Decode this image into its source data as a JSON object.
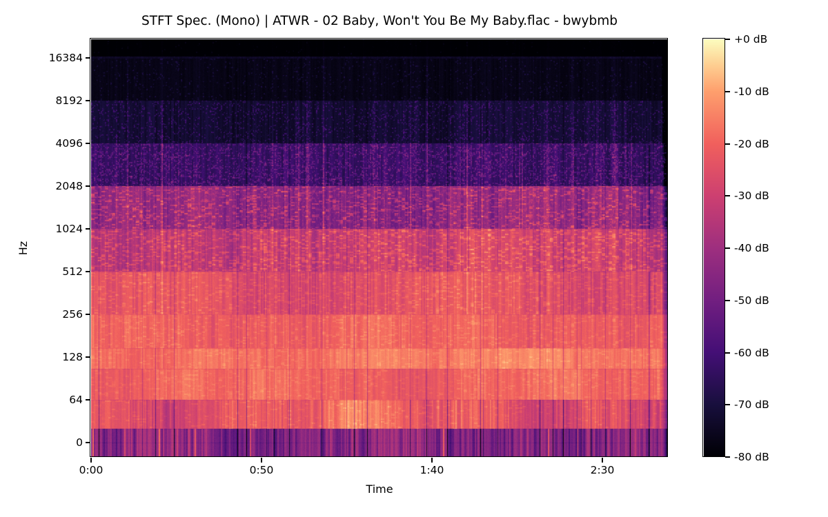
{
  "figure": {
    "background": "#ffffff",
    "text_color": "#000000"
  },
  "chart_data": {
    "type": "heatmap",
    "subtype": "stft-spectrogram",
    "title": "STFT Spec. (Mono) | ATWR - 02 Baby, Won't You Be My Baby.flac - bwybmb",
    "xlabel": "Time",
    "ylabel": "Hz",
    "x_ticks": [
      "0:00",
      "0:50",
      "1:40",
      "2:30"
    ],
    "x_tick_seconds": [
      0,
      50,
      100,
      150
    ],
    "duration_seconds": 171,
    "y_ticks": [
      "16384",
      "8192",
      "4096",
      "2048",
      "1024",
      "512",
      "256",
      "128",
      "64",
      "0"
    ],
    "y_scale": "log",
    "freq_top_hz": 22050,
    "grid": false,
    "legend": "none",
    "colorbar": {
      "position": "right",
      "labels": [
        "+0 dB",
        "-10 dB",
        "-20 dB",
        "-30 dB",
        "-40 dB",
        "-50 dB",
        "-60 dB",
        "-70 dB",
        "-80 dB"
      ],
      "vmax_db": 0,
      "vmin_db": -80,
      "colormap": "magma"
    },
    "colormap_stops": [
      {
        "t": 0.0,
        "color": "#000004"
      },
      {
        "t": 0.125,
        "color": "#180f3d"
      },
      {
        "t": 0.25,
        "color": "#440f76"
      },
      {
        "t": 0.375,
        "color": "#721f81"
      },
      {
        "t": 0.5,
        "color": "#9e2f7f"
      },
      {
        "t": 0.625,
        "color": "#cd4071"
      },
      {
        "t": 0.75,
        "color": "#f1605d"
      },
      {
        "t": 0.875,
        "color": "#fe9f6d"
      },
      {
        "t": 0.9375,
        "color": "#fece91"
      },
      {
        "t": 1.0,
        "color": "#fcfdbf"
      }
    ],
    "spectrogram_bands": [
      {
        "name": "above-nyquist",
        "rows": [
          0,
          25
        ],
        "base": -80,
        "var": 0.3,
        "jit": 0.6,
        "slow": 0,
        "wander": 0,
        "dashP": 0,
        "dashA": 0,
        "spkP": 0.01,
        "spkA": 4,
        "streakW": 0.04,
        "gapW": 0
      },
      {
        "name": "nyquist-line",
        "rows": [
          25,
          28
        ],
        "base": -74.5,
        "var": 1,
        "jit": 1.5,
        "slow": 0.2,
        "wander": 0,
        "dashP": 0,
        "dashA": 0,
        "spkP": 0.3,
        "spkA": 3,
        "streakW": 0.05,
        "gapW": 0
      },
      {
        "name": "hz-8192-16384",
        "rows": [
          28,
          89
        ],
        "base": -77,
        "var": 1.2,
        "jit": 1.6,
        "slow": 0.5,
        "wander": 0,
        "dashP": 0,
        "dashA": 0,
        "spkP": 0.05,
        "spkA": 9,
        "streakW": 0.15,
        "gapW": 0
      },
      {
        "name": "hz-4096-8192",
        "rows": [
          89,
          151
        ],
        "base": -72.5,
        "var": 2.5,
        "jit": 2.2,
        "slow": 1,
        "wander": 0.5,
        "dashP": 0,
        "dashA": 0,
        "spkP": 0.12,
        "spkA": 14,
        "streakW": 0.45,
        "gapW": 0.1
      },
      {
        "name": "hz-2048-4096",
        "rows": [
          151,
          213
        ],
        "base": -64,
        "var": 4,
        "jit": 3,
        "slow": 1.5,
        "wander": 1,
        "dashP": 0.1,
        "dashA": 11,
        "spkP": 0.2,
        "spkA": 17,
        "streakW": 0.7,
        "gapW": 0.2
      },
      {
        "name": "hz-1024-2048",
        "rows": [
          213,
          275
        ],
        "base": -46,
        "var": 6,
        "jit": 3.5,
        "slow": 2,
        "wander": 2.5,
        "dashP": 0.3,
        "dashA": 17,
        "spkP": 0.12,
        "spkA": 10,
        "streakW": 0.8,
        "gapW": 0.35
      },
      {
        "name": "hz-512-1024",
        "rows": [
          275,
          337
        ],
        "base": -33,
        "var": 6,
        "jit": 3.5,
        "slow": 2,
        "wander": 2.5,
        "dashP": 0.38,
        "dashA": 13,
        "spkP": 0.05,
        "spkA": 5,
        "streakW": 0.5,
        "gapW": 0.4
      },
      {
        "name": "hz-256-512",
        "rows": [
          337,
          399
        ],
        "base": -25.5,
        "var": 5.5,
        "jit": 3,
        "slow": 2,
        "wander": 2,
        "dashP": 0.3,
        "dashA": 7,
        "spkP": 0,
        "spkA": 0,
        "streakW": 0.25,
        "gapW": 0.45
      },
      {
        "name": "hz-150-256",
        "rows": [
          399,
          448
        ],
        "base": -20.5,
        "var": 4.5,
        "jit": 2.5,
        "slow": 1.5,
        "wander": 2,
        "dashP": 0.25,
        "dashA": 5,
        "spkP": 0,
        "spkA": 0,
        "streakW": 0.1,
        "gapW": 0.5
      },
      {
        "name": "hz-100-150",
        "rows": [
          448,
          478
        ],
        "base": -16.5,
        "var": 3.5,
        "jit": 2,
        "slow": 1.5,
        "wander": 2,
        "dashP": 0.2,
        "dashA": 4,
        "spkP": 0,
        "spkA": 0,
        "streakW": 0.08,
        "gapW": 0.55
      },
      {
        "name": "hz-64-100",
        "rows": [
          478,
          523
        ],
        "base": -20,
        "var": 4,
        "jit": 2.2,
        "slow": 1.5,
        "wander": 2.2,
        "dashP": 0.22,
        "dashA": 4,
        "spkP": 0,
        "spkA": 0,
        "streakW": 0.08,
        "gapW": 0.6
      },
      {
        "name": "hz-40-64",
        "rows": [
          523,
          565
        ],
        "base": -22.5,
        "var": 6.5,
        "jit": 2.5,
        "slow": 2.5,
        "wander": 5.5,
        "dashP": 0.15,
        "dashA": 5,
        "spkP": 0,
        "spkA": 0,
        "streakW": 0,
        "gapW": 1.1,
        "stripeP": 0.01,
        "stripeA": 10
      },
      {
        "name": "hz-0-40",
        "rows": [
          565,
          606
        ],
        "base": -46,
        "var": 12,
        "jit": 3,
        "slow": 3,
        "wander": 3,
        "dashP": 0,
        "dashA": 0,
        "spkP": 0,
        "spkA": 0,
        "streakW": 0,
        "gapW": 1.4,
        "stripeP": 0.02,
        "stripeA": 22
      }
    ],
    "render": {
      "seed": 11,
      "columns": 836,
      "rows": 606,
      "end_fade_cols": 9,
      "end_fade_db": 26,
      "seam_rows": [
        275,
        337,
        399,
        448,
        478,
        523,
        565,
        585
      ],
      "seam_darken_db": 4
    }
  }
}
